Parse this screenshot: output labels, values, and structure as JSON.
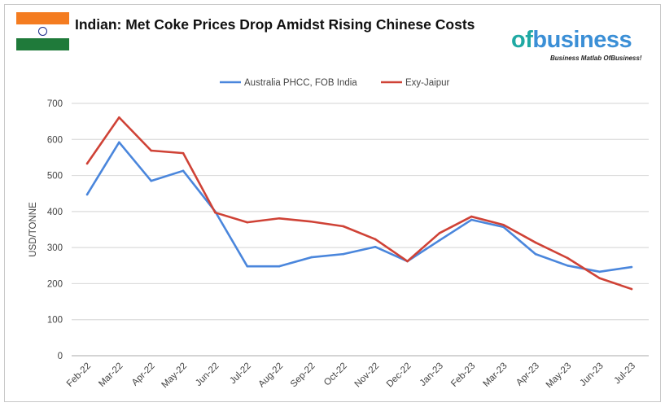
{
  "header": {
    "title": "Indian: Met Coke Prices Drop Amidst Rising Chinese Costs",
    "logo_text": "ofbusiness",
    "logo_tagline": "Business Matlab OfBusiness!"
  },
  "chart_data": {
    "type": "line",
    "title": "",
    "xlabel": "",
    "ylabel": "USD/TONNE",
    "ylim": [
      0,
      700
    ],
    "yticks": [
      0,
      100,
      200,
      300,
      400,
      500,
      600,
      700
    ],
    "grid": true,
    "legend": "top",
    "categories": [
      "Feb-22",
      "Mar-22",
      "Apr-22",
      "May-22",
      "Jun-22",
      "Jul-22",
      "Aug-22",
      "Sep-22",
      "Oct-22",
      "Nov-22",
      "Dec-22",
      "Jan-23",
      "Feb-23",
      "Mar-23",
      "Apr-23",
      "May-23",
      "Jun-23",
      "Jul-23"
    ],
    "series": [
      {
        "name": "Australia PHCC, FOB India",
        "color": "#4a86dc",
        "values": [
          447,
          592,
          485,
          513,
          400,
          248,
          248,
          273,
          282,
          302,
          262,
          320,
          377,
          357,
          282,
          250,
          233,
          246
        ]
      },
      {
        "name": "Exy-Jaipur",
        "color": "#cf4236",
        "values": [
          533,
          661,
          569,
          562,
          397,
          370,
          381,
          372,
          359,
          323,
          262,
          340,
          386,
          363,
          314,
          271,
          215,
          185
        ]
      }
    ]
  }
}
